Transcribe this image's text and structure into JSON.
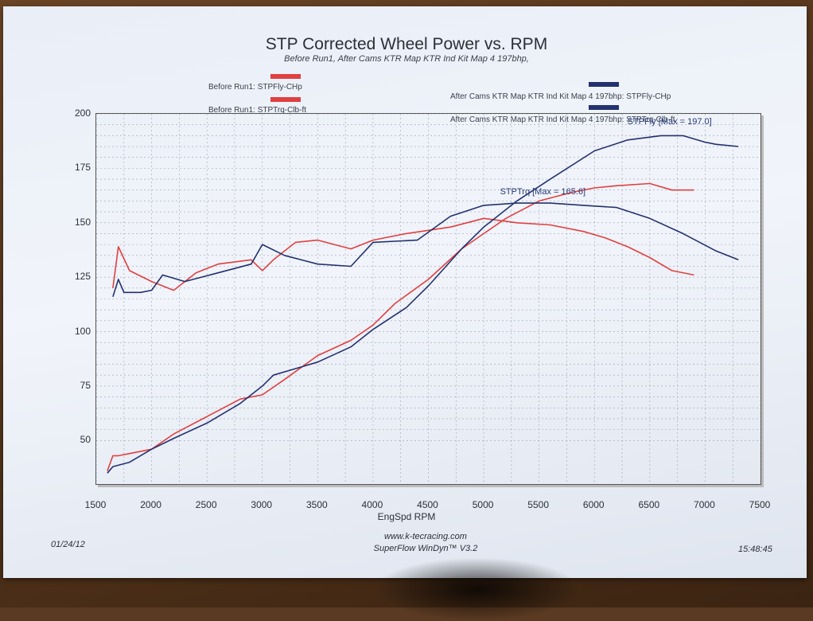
{
  "chart_data": {
    "type": "line",
    "title": "STP Corrected Wheel Power vs. RPM",
    "subtitle": "Before Run1, After Cams KTR Map KTR Ind Kit Map 4 197bhp,",
    "xlabel": "EngSpd RPM",
    "ylabel": "",
    "xlim": [
      1500,
      7500
    ],
    "ylim": [
      30,
      200
    ],
    "x_ticks": [
      "1500",
      "2000",
      "2500",
      "3000",
      "3500",
      "4000",
      "4500",
      "5000",
      "5500",
      "6000",
      "6500",
      "7000",
      "7500"
    ],
    "y_ticks": [
      "50",
      "75",
      "100",
      "125",
      "150",
      "175",
      "200"
    ],
    "grid": true,
    "legend_placement": "top",
    "series": [
      {
        "name": "Before Run1: STPFly-CHp",
        "color": "#e04040",
        "x": [
          1600,
          1650,
          1700,
          1800,
          2000,
          2200,
          2500,
          2800,
          3000,
          3200,
          3500,
          3800,
          4000,
          4200,
          4500,
          4800,
          5000,
          5200,
          5500,
          5800,
          6000,
          6200,
          6500,
          6700,
          6900
        ],
        "y": [
          36,
          43,
          43,
          44,
          46,
          53,
          61,
          69,
          71,
          78,
          89,
          96,
          103,
          113,
          124,
          138,
          145,
          152,
          160,
          164,
          166,
          167,
          168,
          165,
          165
        ]
      },
      {
        "name": "Before Run1: STPTrq-Clb-ft",
        "color": "#e04040",
        "x": [
          1650,
          1700,
          1800,
          2000,
          2200,
          2400,
          2600,
          2900,
          3000,
          3100,
          3300,
          3500,
          3800,
          4000,
          4300,
          4700,
          5000,
          5300,
          5600,
          5900,
          6100,
          6300,
          6500,
          6700,
          6900
        ],
        "y": [
          120,
          139,
          128,
          123,
          119,
          127,
          131,
          133,
          128,
          133,
          141,
          142,
          138,
          142,
          145,
          148,
          152,
          150,
          149,
          146,
          143,
          139,
          134,
          128,
          126
        ]
      },
      {
        "name": "After Cams KTR Map KTR Ind Kit Map 4 197bhp: STPFly-CHp",
        "color": "#23316f",
        "x": [
          1600,
          1650,
          1800,
          2000,
          2200,
          2500,
          2800,
          3000,
          3100,
          3300,
          3500,
          3800,
          4000,
          4300,
          4500,
          4800,
          5000,
          5300,
          5600,
          6000,
          6300,
          6600,
          6800,
          7000,
          7100,
          7300
        ],
        "y": [
          35,
          38,
          40,
          46,
          51,
          58,
          67,
          75,
          80,
          83,
          86,
          93,
          101,
          111,
          121,
          138,
          148,
          160,
          170,
          183,
          188,
          190,
          190,
          187,
          186,
          185
        ]
      },
      {
        "name": "After Cams KTR Map KTR Ind Kit Map 4 197bhp: STPTrq-Clb-ft",
        "color": "#23316f",
        "x": [
          1650,
          1700,
          1750,
          1900,
          2000,
          2100,
          2300,
          2600,
          2900,
          3000,
          3200,
          3500,
          3800,
          4000,
          4400,
          4700,
          5000,
          5300,
          5600,
          5900,
          6200,
          6500,
          6800,
          7100,
          7300
        ],
        "y": [
          116,
          124,
          118,
          118,
          119,
          126,
          123,
          127,
          131,
          140,
          135,
          131,
          130,
          141,
          142,
          153,
          158,
          159,
          159,
          158,
          157,
          152,
          145,
          137,
          133
        ]
      }
    ],
    "annotations": [
      {
        "text": "STPFly [Max = 197.0]",
        "x": 6750,
        "y": 193
      },
      {
        "text": "STPTrq [Max = 165.6]",
        "x": 5600,
        "y": 161
      }
    ]
  },
  "legend": {
    "before_fly": "Before Run1: STPFly-CHp",
    "before_trq": "Before Run1: STPTrq-Clb-ft",
    "after_fly": "After Cams KTR Map KTR Ind Kit Map 4 197bhp: STPFly-CHp",
    "after_trq": "After Cams KTR Map KTR Ind Kit Map 4 197bhp: STPTrq-Clb-ft"
  },
  "footer": {
    "date": "01/24/12",
    "website": "www.k-tecracing.com",
    "software": "SuperFlow WinDyn™ V3.2",
    "time": "15:48:45"
  }
}
